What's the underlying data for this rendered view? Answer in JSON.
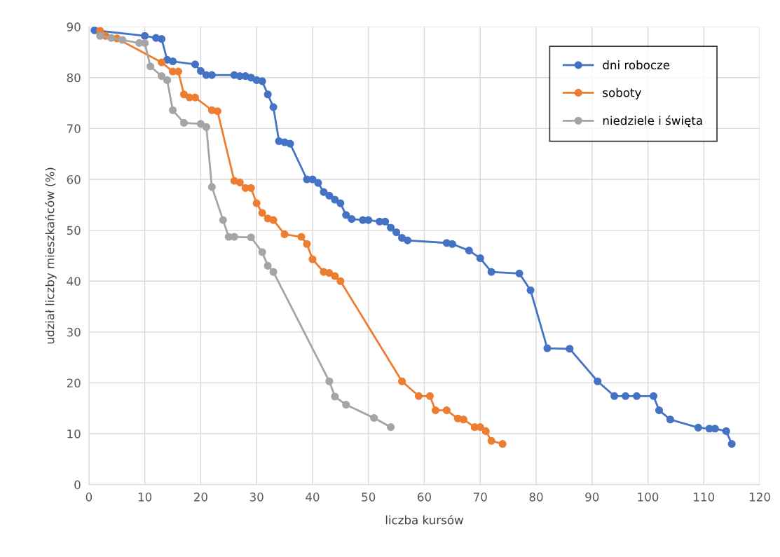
{
  "chart_data": {
    "type": "line",
    "xlabel": "liczba kursów",
    "ylabel": "udział liczby mieszkańców (%)",
    "xlim": [
      0,
      120
    ],
    "xticks": [
      0,
      10,
      20,
      30,
      40,
      50,
      60,
      70,
      80,
      90,
      100,
      110,
      120
    ],
    "ylim": [
      0,
      90
    ],
    "yticks": [
      0,
      10,
      20,
      30,
      40,
      50,
      60,
      70,
      80,
      90
    ],
    "grid": true,
    "legend": "top right",
    "marker": "circle",
    "line_style": "solid",
    "series": [
      {
        "name": "dni robocze",
        "color": "#4472c4",
        "x": [
          1,
          10,
          12,
          13,
          14,
          15,
          19,
          20,
          21,
          22,
          26,
          27,
          28,
          29,
          30,
          31,
          32,
          33,
          34,
          35,
          36,
          39,
          40,
          41,
          42,
          43,
          44,
          45,
          46,
          47,
          49,
          50,
          52,
          53,
          54,
          55,
          56,
          57,
          64,
          65,
          68,
          70,
          72,
          77,
          79,
          82,
          86,
          91,
          94,
          96,
          98,
          101,
          102,
          104,
          109,
          111,
          112,
          114,
          115
        ],
        "values": [
          89.3,
          88.2,
          87.8,
          87.6,
          83.5,
          83.2,
          82.6,
          81.3,
          80.5,
          80.5,
          80.5,
          80.3,
          80.3,
          80,
          79.5,
          79.3,
          76.7,
          74.2,
          67.5,
          67.3,
          67,
          60,
          60,
          59.3,
          57.5,
          56.8,
          56,
          55.3,
          53,
          52.2,
          52,
          52,
          51.7,
          51.7,
          50.5,
          49.6,
          48.5,
          48,
          47.5,
          47.3,
          46,
          44.5,
          41.8,
          41.5,
          38.2,
          26.8,
          26.7,
          20.3,
          17.4,
          17.4,
          17.4,
          17.4,
          14.6,
          12.8,
          11.2,
          11,
          11,
          10.5,
          8
        ]
      },
      {
        "name": "soboty",
        "color": "#ed7d31",
        "x": [
          2,
          3,
          5,
          13,
          15,
          16,
          17,
          18,
          19,
          22,
          23,
          26,
          27,
          28,
          29,
          30,
          31,
          32,
          33,
          35,
          38,
          39,
          40,
          42,
          43,
          44,
          45,
          56,
          59,
          61,
          62,
          64,
          66,
          67,
          69,
          70,
          71,
          72,
          74
        ],
        "values": [
          89.2,
          88.2,
          87.7,
          83,
          81.2,
          81.2,
          76.7,
          76.1,
          76.1,
          73.6,
          73.4,
          59.7,
          59.4,
          58.3,
          58.3,
          55.3,
          53.4,
          52.3,
          52,
          49.2,
          48.7,
          47.3,
          44.3,
          41.8,
          41.6,
          41,
          40,
          20.3,
          17.4,
          17.4,
          14.6,
          14.6,
          13,
          12.8,
          11.3,
          11.3,
          10.5,
          8.6,
          8
        ]
      },
      {
        "name": "niedziele i święta",
        "color": "#a5a5a5",
        "x": [
          2,
          4,
          6,
          9,
          10,
          11,
          13,
          14,
          15,
          17,
          20,
          21,
          22,
          24,
          25,
          26,
          29,
          31,
          32,
          33,
          43,
          44,
          46,
          51,
          54
        ],
        "values": [
          88.2,
          87.8,
          87.4,
          86.8,
          86.8,
          82.2,
          80.3,
          79.5,
          73.6,
          71.1,
          70.9,
          70.3,
          58.5,
          52,
          48.7,
          48.7,
          48.6,
          45.7,
          43,
          41.8,
          20.3,
          17.3,
          15.7,
          13.1,
          11.3
        ]
      }
    ]
  }
}
